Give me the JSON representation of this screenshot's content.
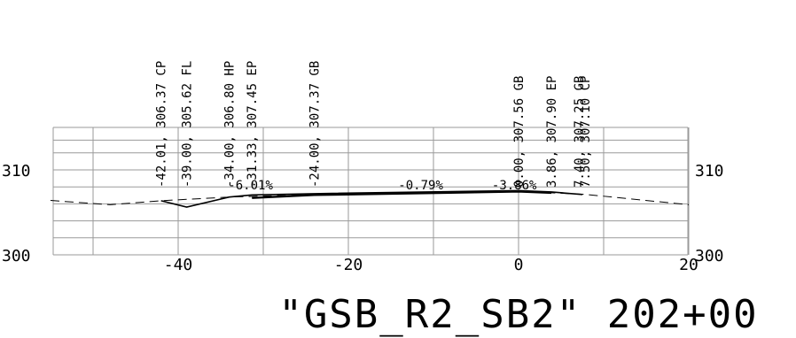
{
  "title": "\"GSB_R2_SB2\"  202+00",
  "elevation_axis": {
    "left_labels": [
      "310",
      "300"
    ],
    "right_labels": [
      "310",
      "300"
    ],
    "values": [
      310,
      300
    ],
    "range": [
      300,
      315
    ]
  },
  "offset_axis": {
    "tick_labels": [
      "-40",
      "-20",
      "0",
      "20"
    ],
    "values": [
      -40,
      -20,
      0,
      20
    ],
    "range": [
      -55,
      20
    ]
  },
  "grid": {
    "minor_elevation_step": 2,
    "offset_step": 10,
    "top_elevation": 315
  },
  "point_labels": [
    {
      "text": "-42.01, 306.37 CP",
      "offset": -42.01,
      "elevation": 306.37
    },
    {
      "text": "-39.00, 305.62 FL",
      "offset": -39.0,
      "elevation": 305.62
    },
    {
      "text": "-34.00, 306.80 HP",
      "offset": -34.0,
      "elevation": 306.8
    },
    {
      "text": "-31.33, 307.45 EP",
      "offset": -31.33,
      "elevation": 307.45
    },
    {
      "text": "-24.00, 307.37 GB",
      "offset": -24.0,
      "elevation": 307.37
    },
    {
      "text": "0.00, 307.56 GB",
      "offset": 0.0,
      "elevation": 307.56
    },
    {
      "text": "3.86, 307.90 EP",
      "offset": 3.86,
      "elevation": 307.9
    },
    {
      "text": "7.40, 307.25 GB",
      "offset": 7.4,
      "elevation": 307.25
    },
    {
      "text": "7.50, 307.10 CP",
      "offset": 7.5,
      "elevation": 307.1
    }
  ],
  "slope_labels": [
    {
      "text": "-6.01%",
      "offset": -31.5
    },
    {
      "text": "-0.79%",
      "offset": -11.5
    },
    {
      "text": "-3.86%",
      "offset": -0.5
    }
  ],
  "profile": [
    {
      "offset": -42.01,
      "elevation": 306.37
    },
    {
      "offset": -39.0,
      "elevation": 305.62
    },
    {
      "offset": -34.0,
      "elevation": 306.8
    },
    {
      "offset": -31.33,
      "elevation": 307.05
    },
    {
      "offset": -24.0,
      "elevation": 307.2
    },
    {
      "offset": 0.0,
      "elevation": 307.56
    },
    {
      "offset": 3.86,
      "elevation": 307.4
    },
    {
      "offset": 7.5,
      "elevation": 307.1
    }
  ],
  "pavement": [
    {
      "offset": -31.33,
      "elevation": 306.7
    },
    {
      "offset": -24.0,
      "elevation": 307.05
    },
    {
      "offset": 0.0,
      "elevation": 307.45
    },
    {
      "offset": 3.86,
      "elevation": 307.3
    }
  ],
  "existing_ground": [
    {
      "offset": -55,
      "elevation": 306.4
    },
    {
      "offset": -48,
      "elevation": 305.9
    },
    {
      "offset": -42.01,
      "elevation": 306.37
    },
    {
      "offset": -34,
      "elevation": 306.8
    },
    {
      "offset": -20,
      "elevation": 307.2
    },
    {
      "offset": 0,
      "elevation": 307.5
    },
    {
      "offset": 8,
      "elevation": 307.1
    },
    {
      "offset": 20,
      "elevation": 305.9
    }
  ]
}
